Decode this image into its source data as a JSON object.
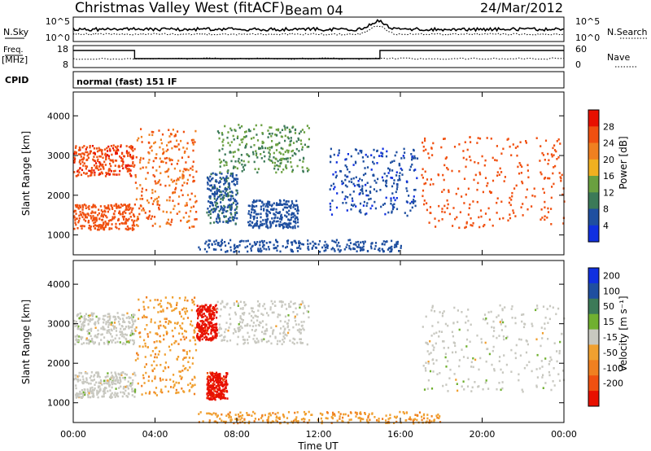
{
  "header": {
    "station": "Christmas Valley West (fitACF)",
    "beam": "Beam 04",
    "date": "24/Mar/2012"
  },
  "noise_panel": {
    "left_label": "N.Sky",
    "right_label": "N.Search",
    "left_top_tick": "10^5",
    "left_bottom_tick": "10^0",
    "right_top_tick": "10^5",
    "right_bottom_tick": "10^0"
  },
  "freq_panel": {
    "left_label": "Freq.",
    "left_unit": "[MHz]",
    "right_label": "Nave",
    "left_top_tick": "18",
    "left_bottom_tick": "8",
    "right_top_tick": "60",
    "right_bottom_tick": "0"
  },
  "cpid": {
    "label": "CPID",
    "mode": "normal (fast) 151 IF"
  },
  "colors": {
    "power": [
      "#1030e0",
      "#1f4fa0",
      "#3c7a58",
      "#6aa040",
      "#f0b020",
      "#f08020",
      "#f05010",
      "#e81000"
    ],
    "velocity": [
      "#e81000",
      "#f05010",
      "#f08020",
      "#f0a030",
      "#c8c8c0",
      "#70b030",
      "#3c7a58",
      "#1f4fa0",
      "#1030e0"
    ]
  },
  "chart_data": [
    {
      "type": "heatmap",
      "title": "",
      "ylabel": "Slant Range [km]",
      "xlabel": "",
      "ylim": [
        500,
        4600
      ],
      "xlim": [
        0,
        24
      ],
      "y_ticks": [
        "1000",
        "2000",
        "3000",
        "4000"
      ],
      "colorbar": {
        "label": "Power [dB]",
        "ticks": [
          "4",
          "8",
          "12",
          "16",
          "20",
          "24",
          "28"
        ],
        "range": [
          0,
          32
        ]
      },
      "regions": [
        {
          "x": [
            0,
            3
          ],
          "y": [
            2500,
            3300
          ],
          "value": 27
        },
        {
          "x": [
            0,
            3
          ],
          "y": [
            1150,
            1800
          ],
          "value": 26
        },
        {
          "x": [
            3,
            6
          ],
          "y": [
            1200,
            3700
          ],
          "value": 24
        },
        {
          "x": [
            6.5,
            8
          ],
          "y": [
            1300,
            2600
          ],
          "value": 7
        },
        {
          "x": [
            7,
            11.5
          ],
          "y": [
            2600,
            3800
          ],
          "value": 12
        },
        {
          "x": [
            8.5,
            11
          ],
          "y": [
            1200,
            1900
          ],
          "value": 6
        },
        {
          "x": [
            12.5,
            16.8
          ],
          "y": [
            1500,
            3200
          ],
          "value": 5
        },
        {
          "x": [
            17,
            24
          ],
          "y": [
            1200,
            3500
          ],
          "value": 26
        },
        {
          "x": [
            6,
            16
          ],
          "y": [
            600,
            900
          ],
          "value": 6
        }
      ]
    },
    {
      "type": "heatmap",
      "title": "",
      "ylabel": "Slant Range [km]",
      "xlabel": "Time UT",
      "ylim": [
        500,
        4600
      ],
      "xlim": [
        0,
        24
      ],
      "y_ticks": [
        "1000",
        "2000",
        "3000",
        "4000"
      ],
      "x_ticks": [
        "00:00",
        "04:00",
        "08:00",
        "12:00",
        "16:00",
        "20:00",
        "00:00"
      ],
      "colorbar": {
        "label": "Velocity [m s⁻¹]",
        "ticks": [
          "200",
          "100",
          "50",
          "15",
          "-15",
          "-50",
          "-100",
          "-200"
        ],
        "range": [
          -250,
          250
        ]
      },
      "regions": [
        {
          "x": [
            0,
            3
          ],
          "y": [
            2500,
            3300
          ],
          "value": 0
        },
        {
          "x": [
            0,
            3
          ],
          "y": [
            1150,
            1800
          ],
          "value": 0
        },
        {
          "x": [
            3,
            6
          ],
          "y": [
            1200,
            3700
          ],
          "value": -70
        },
        {
          "x": [
            6,
            7
          ],
          "y": [
            2600,
            3500
          ],
          "value": -220
        },
        {
          "x": [
            6.5,
            7.5
          ],
          "y": [
            1100,
            1800
          ],
          "value": -220
        },
        {
          "x": [
            7,
            11.5
          ],
          "y": [
            2500,
            3600
          ],
          "value": 0
        },
        {
          "x": [
            17,
            24
          ],
          "y": [
            1300,
            3500
          ],
          "value": 0
        },
        {
          "x": [
            6,
            18
          ],
          "y": [
            500,
            800
          ],
          "value": -70
        }
      ]
    }
  ]
}
